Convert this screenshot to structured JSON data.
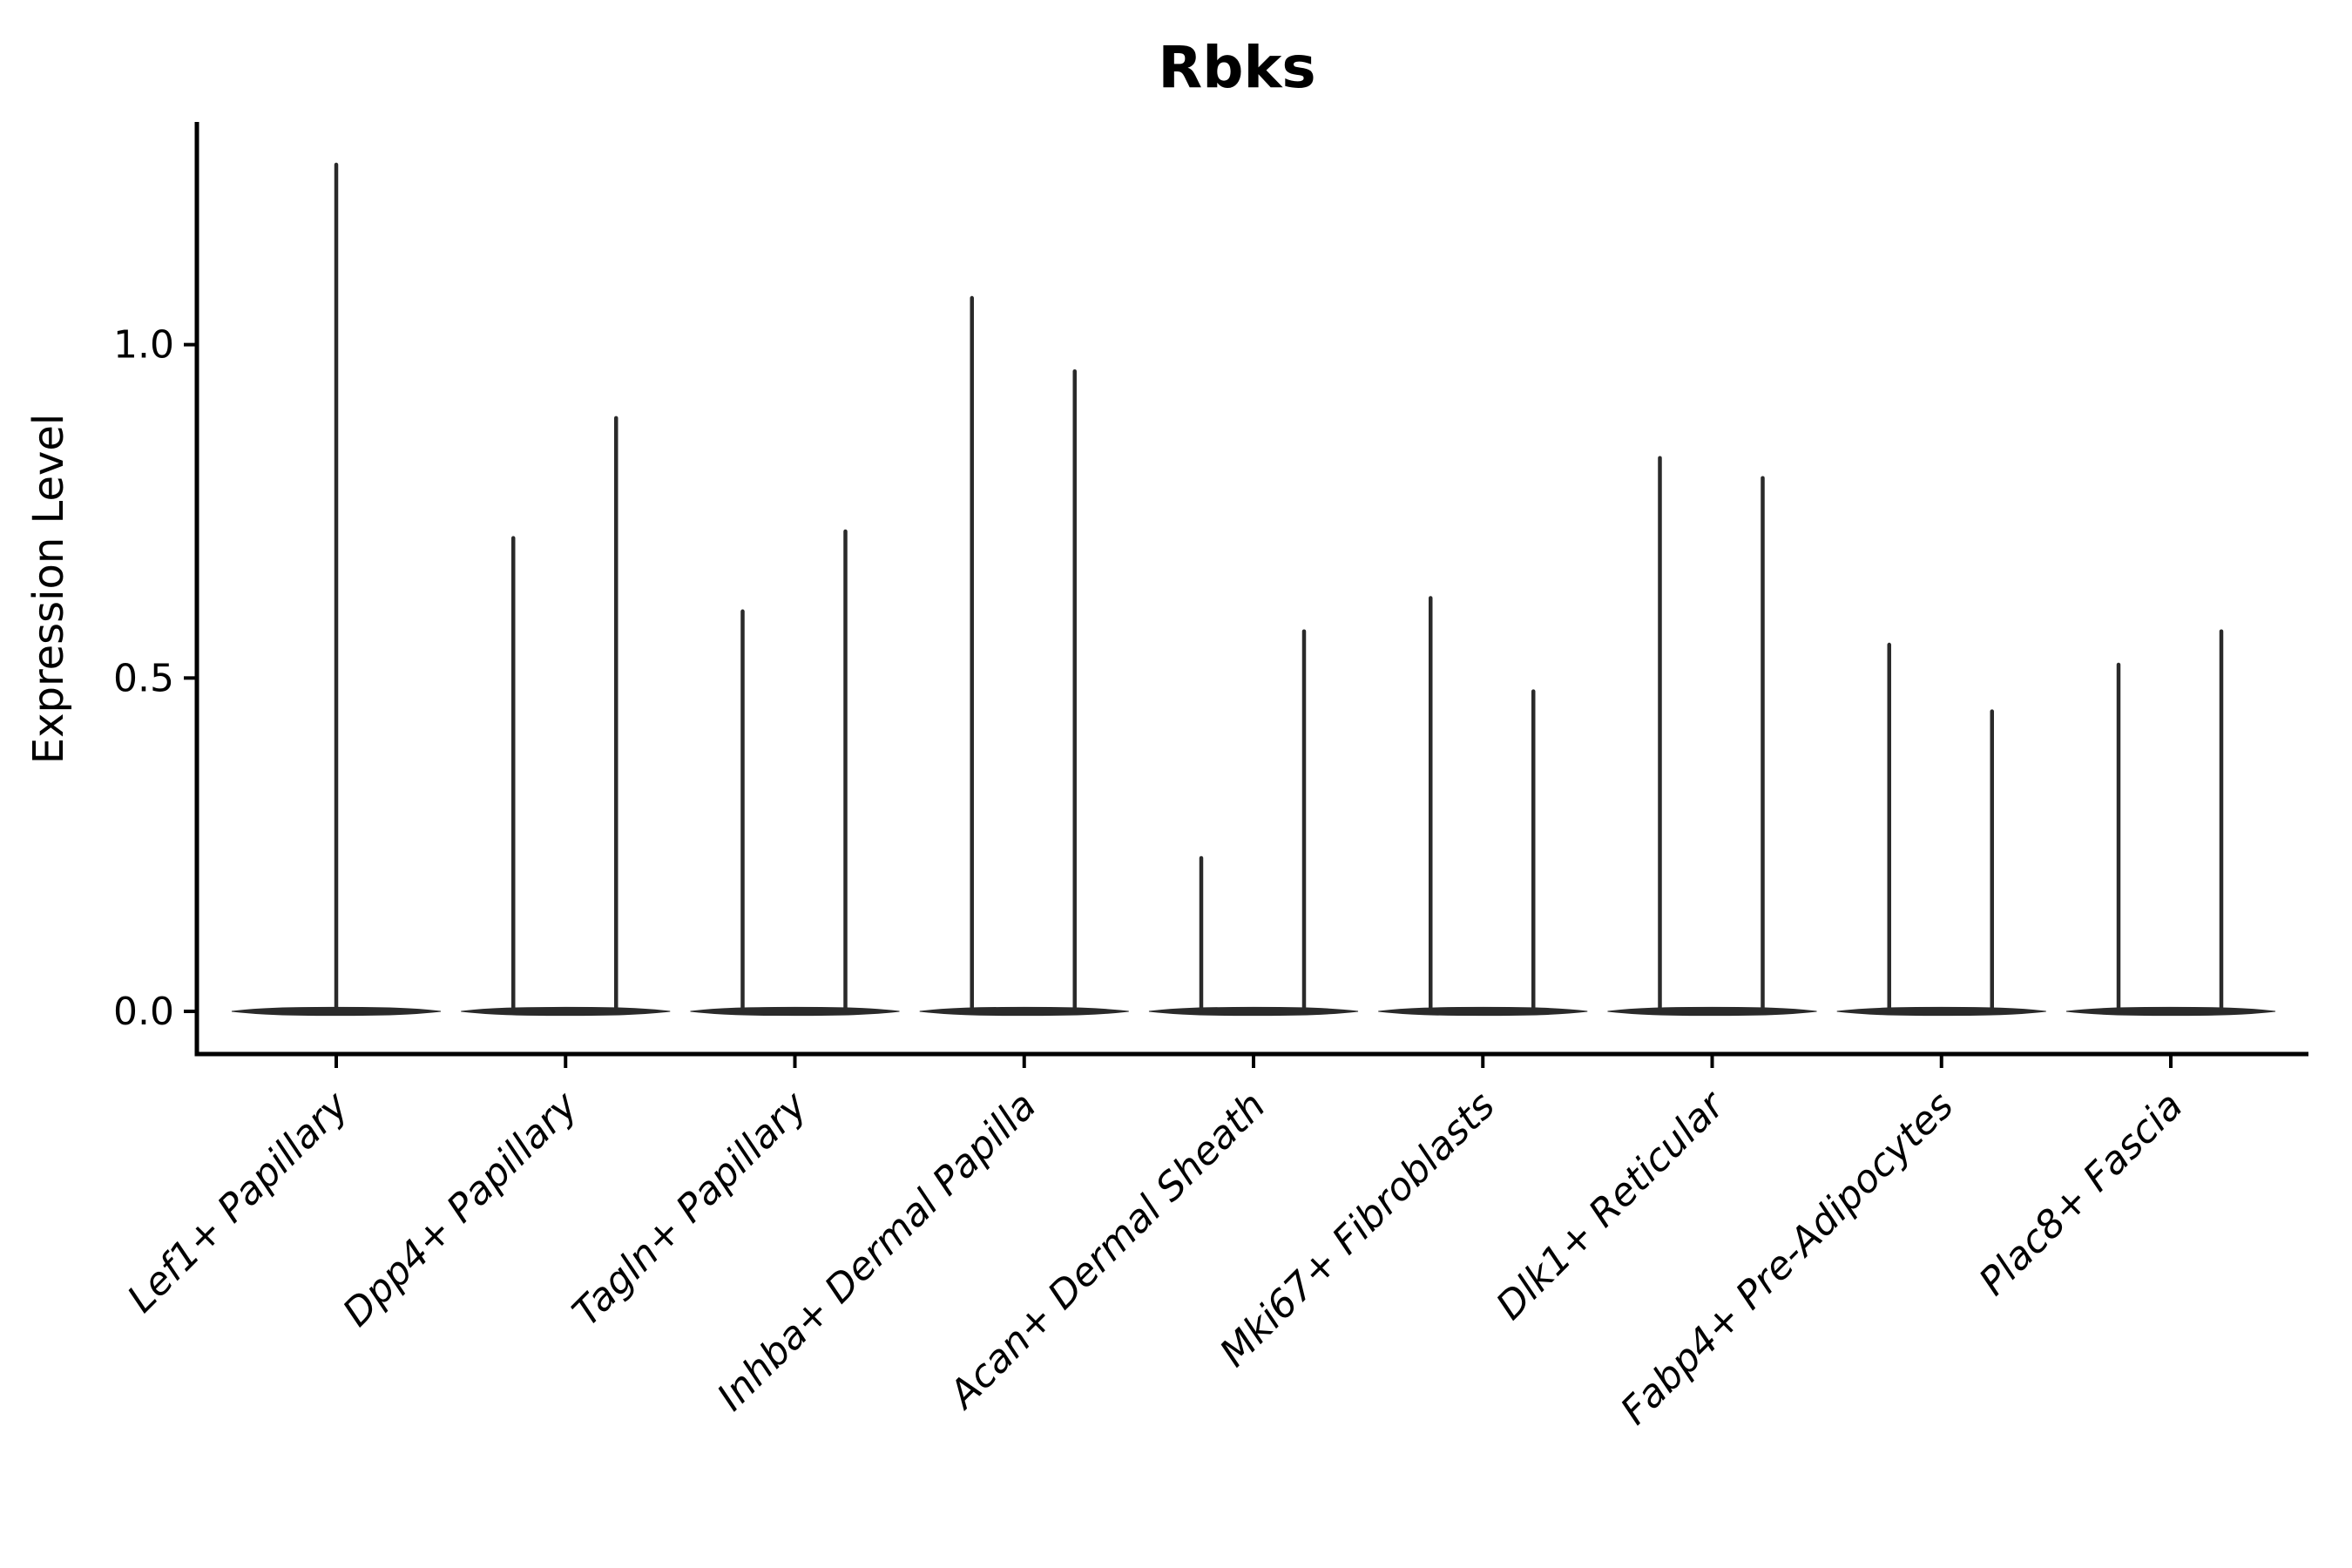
{
  "title": "Rbks",
  "colors": {
    "violin": "#2a2a2a",
    "axis": "#000000",
    "text": "#000000",
    "background": "#ffffff"
  },
  "chart_data": {
    "type": "violin",
    "title": "Rbks",
    "xlabel": "",
    "ylabel": "Expression Level",
    "ylim": [
      -0.064,
      1.334
    ],
    "yticks": [
      0.0,
      0.5,
      1.0
    ],
    "ytick_labels": [
      "0.0",
      "0.5",
      "1.0"
    ],
    "grid": false,
    "legend": "none",
    "x_label_rotation_deg": 45,
    "x_label_style": "italic",
    "baseline_value": 0.0,
    "categories": [
      "Lef1+ Papillary",
      "Dpp4+ Papillary",
      "Tagln+ Papillary",
      "Inhba+ Dermal Papilla",
      "Acan+ Dermal Sheath",
      "Mki67+ Fibroblasts",
      "Dlk1+ Reticular",
      "Fabp4+ Pre-Adipocytes",
      "Plac8+ Fascia"
    ],
    "violins": [
      {
        "category": "Lef1+ Papillary",
        "body_at_zero": true,
        "spikes": [
          {
            "offset": 0,
            "value": 1.27
          }
        ]
      },
      {
        "category": "Dpp4+ Papillary",
        "body_at_zero": true,
        "spikes": [
          {
            "offset": -60,
            "value": 0.71
          },
          {
            "offset": 58,
            "value": 0.89
          }
        ]
      },
      {
        "category": "Tagln+ Papillary",
        "body_at_zero": true,
        "spikes": [
          {
            "offset": -60,
            "value": 0.6
          },
          {
            "offset": 58,
            "value": 0.72
          }
        ]
      },
      {
        "category": "Inhba+ Dermal Papilla",
        "body_at_zero": true,
        "spikes": [
          {
            "offset": -60,
            "value": 1.07
          },
          {
            "offset": 58,
            "value": 0.96
          }
        ]
      },
      {
        "category": "Acan+ Dermal Sheath",
        "body_at_zero": true,
        "spikes": [
          {
            "offset": -60,
            "value": 0.23
          },
          {
            "offset": 58,
            "value": 0.57
          }
        ]
      },
      {
        "category": "Mki67+ Fibroblasts",
        "body_at_zero": true,
        "spikes": [
          {
            "offset": -60,
            "value": 0.62
          },
          {
            "offset": 58,
            "value": 0.48
          }
        ]
      },
      {
        "category": "Dlk1+ Reticular",
        "body_at_zero": true,
        "spikes": [
          {
            "offset": -60,
            "value": 0.83
          },
          {
            "offset": 58,
            "value": 0.8
          }
        ]
      },
      {
        "category": "Fabp4+ Pre-Adipocytes",
        "body_at_zero": true,
        "spikes": [
          {
            "offset": -60,
            "value": 0.55
          },
          {
            "offset": 58,
            "value": 0.45
          }
        ]
      },
      {
        "category": "Plac8+ Fascia",
        "body_at_zero": true,
        "spikes": [
          {
            "offset": -60,
            "value": 0.52
          },
          {
            "offset": 58,
            "value": 0.57
          }
        ]
      }
    ]
  }
}
